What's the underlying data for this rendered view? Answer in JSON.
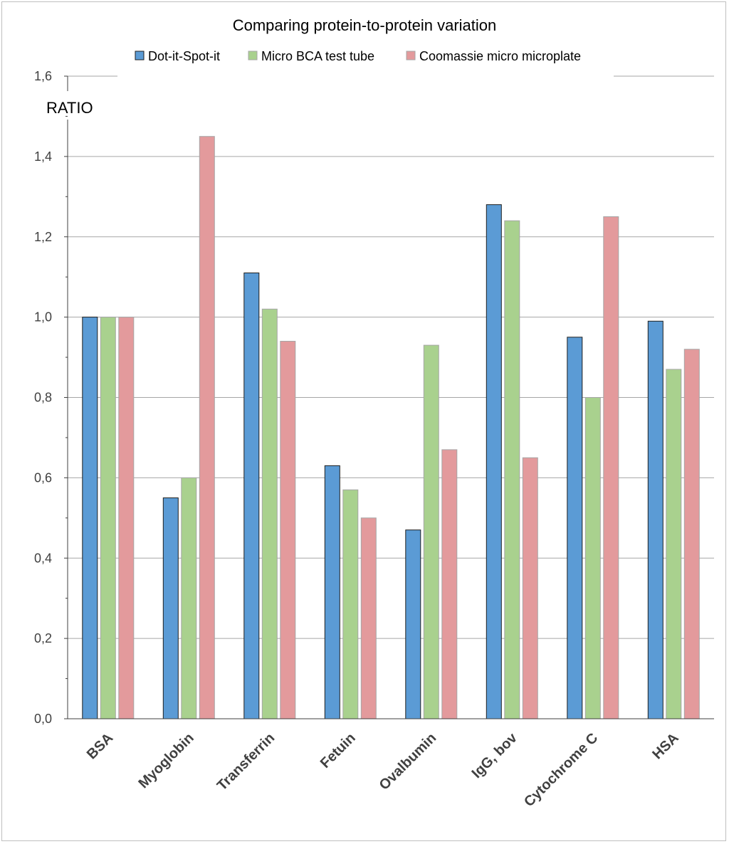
{
  "chart_data": {
    "type": "bar",
    "title": "Comparing protein-to-protein variation",
    "ylabel": "RATIO",
    "xlabel": "",
    "ylim": [
      0,
      1.6
    ],
    "yticks": [
      "0,0",
      "0,2",
      "0,4",
      "0,6",
      "0,8",
      "1,0",
      "1,2",
      "1,4",
      "1,6"
    ],
    "grid": true,
    "legend_position": "top",
    "categories": [
      "BSA",
      "Myoglobin",
      "Transferrin",
      "Fetuin",
      "Ovalbumin",
      "IgG, bov",
      "Cytochrome C",
      "HSA"
    ],
    "series": [
      {
        "name": "Dot-it-Spot-it",
        "color": "#5b9bd5",
        "values": [
          1.0,
          0.55,
          1.11,
          0.63,
          0.47,
          1.28,
          0.95,
          0.99
        ]
      },
      {
        "name": "Micro BCA test tube",
        "color": "#a9d18e",
        "values": [
          1.0,
          0.6,
          1.02,
          0.57,
          0.93,
          1.24,
          0.8,
          0.87
        ]
      },
      {
        "name": "Coomassie micro microplate",
        "color": "#e39a9c",
        "values": [
          1.0,
          1.45,
          0.94,
          0.5,
          0.67,
          0.65,
          1.25,
          0.92
        ]
      }
    ]
  }
}
